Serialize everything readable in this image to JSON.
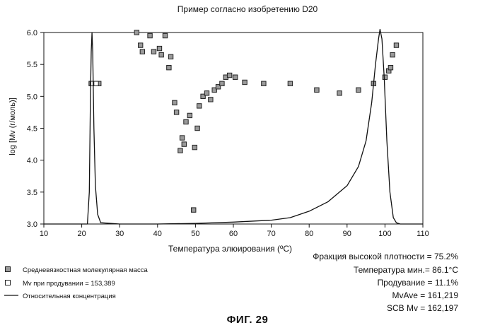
{
  "chart_data": {
    "type": "scatter",
    "title": "Пример согласно изобретению D20",
    "xlabel": "Температура элюирования (ºC)",
    "ylabel": "log [Mv (г/моль)]",
    "xlim": [
      10,
      110
    ],
    "ylim": [
      3.0,
      6.0
    ],
    "xticks": [
      "10",
      "20",
      "30",
      "40",
      "50",
      "60",
      "70",
      "80",
      "90",
      "100",
      "110"
    ],
    "yticks": [
      "3.0",
      "3.5",
      "4.0",
      "4.5",
      "5.0",
      "5.5",
      "6.0"
    ],
    "grid": false,
    "legend_position": "bottom-left",
    "series": [
      {
        "name": "Средневязкостная молекулярная масса",
        "kind": "scatter-filled-square",
        "points": [
          [
            22.5,
            5.2
          ],
          [
            23.5,
            5.2
          ],
          [
            24.5,
            5.2
          ],
          [
            34.5,
            6.0
          ],
          [
            35.5,
            5.8
          ],
          [
            36.0,
            5.7
          ],
          [
            38.0,
            5.95
          ],
          [
            39.0,
            5.7
          ],
          [
            40.5,
            5.75
          ],
          [
            41.0,
            5.65
          ],
          [
            42.0,
            5.95
          ],
          [
            43.0,
            5.45
          ],
          [
            43.5,
            5.62
          ],
          [
            44.5,
            4.9
          ],
          [
            45.0,
            4.75
          ],
          [
            46.0,
            4.15
          ],
          [
            46.5,
            4.35
          ],
          [
            47.0,
            4.25
          ],
          [
            47.5,
            4.6
          ],
          [
            48.5,
            4.7
          ],
          [
            49.5,
            3.22
          ],
          [
            49.8,
            4.2
          ],
          [
            50.5,
            4.5
          ],
          [
            51.0,
            4.85
          ],
          [
            52.0,
            5.0
          ],
          [
            53.0,
            5.05
          ],
          [
            54.0,
            4.95
          ],
          [
            55.0,
            5.1
          ],
          [
            56.0,
            5.15
          ],
          [
            57.0,
            5.2
          ],
          [
            58.0,
            5.3
          ],
          [
            59.0,
            5.33
          ],
          [
            60.5,
            5.3
          ],
          [
            63.0,
            5.22
          ],
          [
            68.0,
            5.2
          ],
          [
            75.0,
            5.2
          ],
          [
            82.0,
            5.1
          ],
          [
            88.0,
            5.05
          ],
          [
            93.0,
            5.1
          ],
          [
            97.0,
            5.2
          ],
          [
            100.0,
            5.3
          ],
          [
            101.0,
            5.4
          ],
          [
            101.5,
            5.45
          ],
          [
            102.0,
            5.65
          ],
          [
            103.0,
            5.8
          ]
        ]
      },
      {
        "name": "Mv при продувании = 153,389",
        "kind": "scatter-open-square",
        "points": [
          [
            22.8,
            5.2
          ],
          [
            23.8,
            5.2
          ]
        ]
      },
      {
        "name": "Относительная концентрация",
        "kind": "line",
        "points": [
          [
            10.0,
            3.0
          ],
          [
            20.0,
            3.0
          ],
          [
            21.5,
            3.0
          ],
          [
            22.0,
            3.5
          ],
          [
            22.3,
            5.0
          ],
          [
            22.5,
            5.7
          ],
          [
            22.7,
            6.0
          ],
          [
            22.9,
            5.7
          ],
          [
            23.2,
            4.5
          ],
          [
            23.6,
            3.6
          ],
          [
            24.2,
            3.15
          ],
          [
            25.0,
            3.02
          ],
          [
            30.0,
            3.0
          ],
          [
            40.0,
            3.0
          ],
          [
            50.0,
            3.01
          ],
          [
            60.0,
            3.03
          ],
          [
            70.0,
            3.06
          ],
          [
            75.0,
            3.1
          ],
          [
            80.0,
            3.2
          ],
          [
            85.0,
            3.35
          ],
          [
            90.0,
            3.6
          ],
          [
            93.0,
            3.9
          ],
          [
            95.0,
            4.3
          ],
          [
            96.5,
            4.9
          ],
          [
            97.5,
            5.5
          ],
          [
            98.3,
            5.9
          ],
          [
            98.7,
            6.05
          ],
          [
            99.2,
            5.9
          ],
          [
            99.8,
            5.3
          ],
          [
            100.5,
            4.3
          ],
          [
            101.3,
            3.5
          ],
          [
            102.2,
            3.1
          ],
          [
            103.0,
            3.02
          ],
          [
            104.0,
            3.0
          ],
          [
            110.0,
            3.0
          ]
        ]
      }
    ],
    "stats": [
      "Фракция высокой плотности = 75.2%",
      "Температура мин.= 86.1°C",
      "Продувание = 11.1%",
      "MvAve = 161,219",
      "SCB Mv = 162,197"
    ],
    "legend": [
      "Средневязкостная молекулярная масса",
      "Mv при продувании = 153,389",
      "Относительная концентрация"
    ]
  },
  "figure_caption": "ФИГ. 29",
  "colors": {
    "axis": "#111111",
    "line": "#111111",
    "marker_fill": "#9a9a9a",
    "marker_edge": "#222222"
  }
}
